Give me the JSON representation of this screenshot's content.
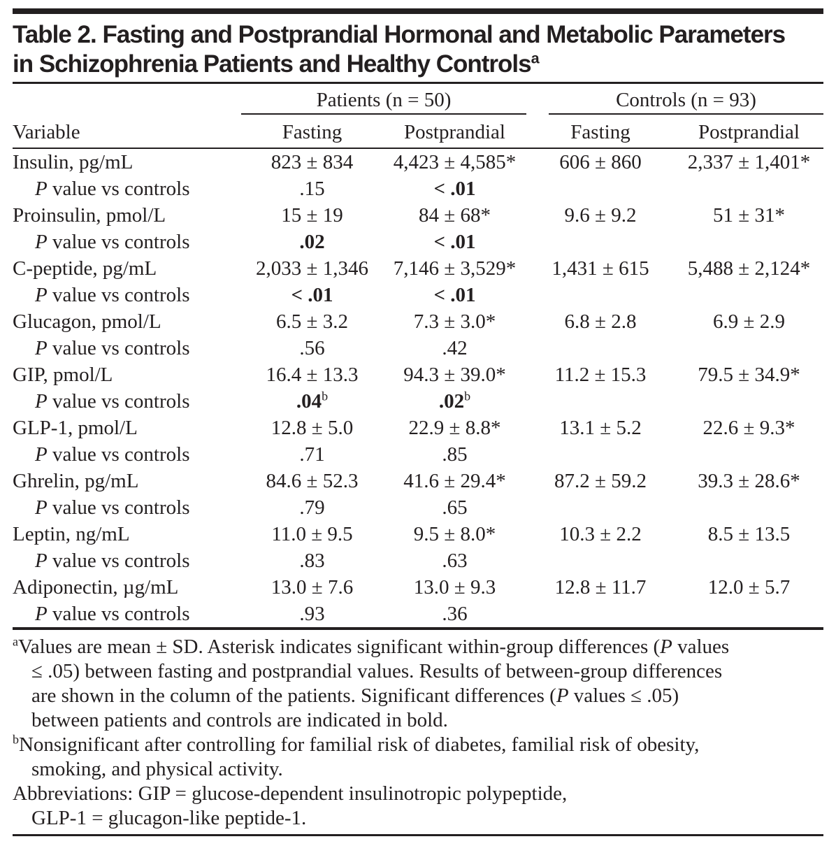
{
  "page": {
    "background": "#ffffff",
    "text_color": "#231f20",
    "rule_color": "#231f20"
  },
  "title": {
    "line1": "Table 2. Fasting and Postprandial Hormonal and Metabolic Parameters",
    "line2": "in Schizophrenia Patients and Healthy Controls",
    "superscript": "a"
  },
  "table": {
    "group_headers": [
      {
        "label": "Patients (n = 50)"
      },
      {
        "label": "Controls (n = 93)"
      }
    ],
    "variable_header": "Variable",
    "sub_headers": [
      "Fasting",
      "Postprandial",
      "Fasting",
      "Postprandial"
    ],
    "p_row_label": {
      "italic": "P",
      "rest": " value vs controls"
    },
    "rows": [
      {
        "variable": "Insulin, pg/mL",
        "values": [
          "823 ± 834",
          "4,423 ± 4,585*",
          "606 ± 860",
          "2,337 ± 1,401*"
        ],
        "p_values": [
          {
            "text": ".15",
            "bold": false,
            "sup": ""
          },
          {
            "text": "< .01",
            "bold": true,
            "sup": ""
          }
        ]
      },
      {
        "variable": "Proinsulin, pmol/L",
        "values": [
          "15 ± 19",
          "84 ± 68*",
          "9.6 ± 9.2",
          "51 ± 31*"
        ],
        "p_values": [
          {
            "text": ".02",
            "bold": true,
            "sup": ""
          },
          {
            "text": "< .01",
            "bold": true,
            "sup": ""
          }
        ]
      },
      {
        "variable": "C-peptide, pg/mL",
        "values": [
          "2,033 ± 1,346",
          "7,146 ± 3,529*",
          "1,431 ± 615",
          "5,488 ± 2,124*"
        ],
        "p_values": [
          {
            "text": "< .01",
            "bold": true,
            "sup": ""
          },
          {
            "text": "< .01",
            "bold": true,
            "sup": ""
          }
        ]
      },
      {
        "variable": "Glucagon, pmol/L",
        "values": [
          "6.5 ± 3.2",
          "7.3 ± 3.0*",
          "6.8 ± 2.8",
          "6.9 ± 2.9"
        ],
        "p_values": [
          {
            "text": ".56",
            "bold": false,
            "sup": ""
          },
          {
            "text": ".42",
            "bold": false,
            "sup": ""
          }
        ]
      },
      {
        "variable": "GIP, pmol/L",
        "values": [
          "16.4 ± 13.3",
          "94.3 ± 39.0*",
          "11.2 ± 15.3",
          "79.5 ± 34.9*"
        ],
        "p_values": [
          {
            "text": ".04",
            "bold": true,
            "sup": "b"
          },
          {
            "text": ".02",
            "bold": true,
            "sup": "b"
          }
        ]
      },
      {
        "variable": "GLP-1, pmol/L",
        "values": [
          "12.8 ± 5.0",
          "22.9 ± 8.8*",
          "13.1 ± 5.2",
          "22.6 ± 9.3*"
        ],
        "p_values": [
          {
            "text": ".71",
            "bold": false,
            "sup": ""
          },
          {
            "text": ".85",
            "bold": false,
            "sup": ""
          }
        ]
      },
      {
        "variable": "Ghrelin, pg/mL",
        "values": [
          "84.6 ± 52.3",
          "41.6 ± 29.4*",
          "87.2 ± 59.2",
          "39.3 ± 28.6*"
        ],
        "p_values": [
          {
            "text": ".79",
            "bold": false,
            "sup": ""
          },
          {
            "text": ".65",
            "bold": false,
            "sup": ""
          }
        ]
      },
      {
        "variable": "Leptin, ng/mL",
        "values": [
          "11.0 ± 9.5",
          "9.5 ± 8.0*",
          "10.3 ± 2.2",
          "8.5 ± 13.5"
        ],
        "p_values": [
          {
            "text": ".83",
            "bold": false,
            "sup": ""
          },
          {
            "text": ".63",
            "bold": false,
            "sup": ""
          }
        ]
      },
      {
        "variable": "Adiponectin, µg/mL",
        "values": [
          "13.0 ± 7.6",
          "13.0 ± 9.3",
          "12.8 ± 11.7",
          "12.0 ± 5.7"
        ],
        "p_values": [
          {
            "text": ".93",
            "bold": false,
            "sup": ""
          },
          {
            "text": ".36",
            "bold": false,
            "sup": ""
          }
        ]
      }
    ]
  },
  "footnotes": [
    {
      "lines": [
        {
          "indent": false,
          "segments": [
            {
              "style": "sup",
              "text": "a"
            },
            {
              "style": "",
              "text": "Values are mean ± SD. Asterisk indicates significant within-group differences ("
            },
            {
              "style": "i",
              "text": "P"
            },
            {
              "style": "",
              "text": " values"
            }
          ]
        },
        {
          "indent": true,
          "segments": [
            {
              "style": "",
              "text": "≤ .05) between fasting and postprandial values. Results of between-group differences"
            }
          ]
        },
        {
          "indent": true,
          "segments": [
            {
              "style": "",
              "text": "are shown in the column of the patients. Significant differences ("
            },
            {
              "style": "i",
              "text": "P"
            },
            {
              "style": "",
              "text": " values ≤ .05)"
            }
          ]
        },
        {
          "indent": true,
          "segments": [
            {
              "style": "",
              "text": "between patients and controls are indicated in bold."
            }
          ]
        }
      ]
    },
    {
      "lines": [
        {
          "indent": false,
          "segments": [
            {
              "style": "sup",
              "text": "b"
            },
            {
              "style": "",
              "text": "Nonsignificant after controlling for familial risk of diabetes, familial risk of obesity,"
            }
          ]
        },
        {
          "indent": true,
          "segments": [
            {
              "style": "",
              "text": "smoking, and physical activity."
            }
          ]
        }
      ]
    },
    {
      "lines": [
        {
          "indent": false,
          "segments": [
            {
              "style": "",
              "text": "Abbreviations: GIP = glucose-dependent insulinotropic polypeptide,"
            }
          ]
        },
        {
          "indent": true,
          "segments": [
            {
              "style": "",
              "text": "GLP-1 = glucagon-like peptide-1."
            }
          ]
        }
      ]
    }
  ]
}
